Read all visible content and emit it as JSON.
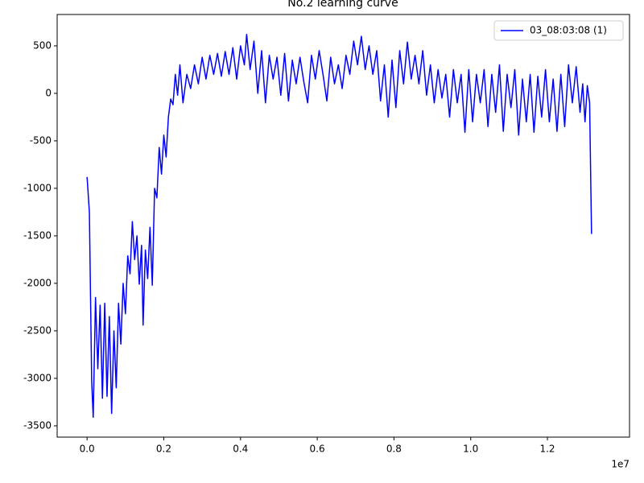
{
  "chart_data": {
    "type": "line",
    "title": "No.2 learning curve",
    "x_offset_label": "1e7",
    "x": [
      0.0,
      0.006,
      0.012,
      0.016,
      0.022,
      0.028,
      0.034,
      0.04,
      0.046,
      0.052,
      0.058,
      0.064,
      0.07,
      0.076,
      0.082,
      0.088,
      0.094,
      0.1,
      0.106,
      0.112,
      0.118,
      0.124,
      0.13,
      0.136,
      0.142,
      0.146,
      0.152,
      0.158,
      0.164,
      0.17,
      0.176,
      0.182,
      0.188,
      0.194,
      0.2,
      0.206,
      0.212,
      0.218,
      0.224,
      0.23,
      0.236,
      0.242,
      0.25,
      0.26,
      0.27,
      0.28,
      0.29,
      0.3,
      0.31,
      0.32,
      0.33,
      0.34,
      0.35,
      0.36,
      0.37,
      0.38,
      0.39,
      0.4,
      0.41,
      0.416,
      0.425,
      0.435,
      0.445,
      0.455,
      0.465,
      0.475,
      0.485,
      0.495,
      0.505,
      0.515,
      0.525,
      0.535,
      0.545,
      0.555,
      0.565,
      0.575,
      0.585,
      0.595,
      0.605,
      0.615,
      0.625,
      0.635,
      0.645,
      0.655,
      0.665,
      0.675,
      0.685,
      0.695,
      0.705,
      0.715,
      0.725,
      0.735,
      0.745,
      0.755,
      0.765,
      0.775,
      0.785,
      0.795,
      0.805,
      0.815,
      0.825,
      0.835,
      0.845,
      0.855,
      0.865,
      0.875,
      0.885,
      0.895,
      0.905,
      0.915,
      0.925,
      0.935,
      0.945,
      0.955,
      0.965,
      0.975,
      0.985,
      0.995,
      1.005,
      1.015,
      1.025,
      1.035,
      1.045,
      1.055,
      1.065,
      1.075,
      1.085,
      1.095,
      1.105,
      1.115,
      1.125,
      1.135,
      1.145,
      1.155,
      1.165,
      1.175,
      1.185,
      1.195,
      1.205,
      1.215,
      1.225,
      1.235,
      1.245,
      1.255,
      1.265,
      1.275,
      1.285,
      1.292,
      1.298,
      1.304,
      1.31,
      1.315
    ],
    "series": [
      {
        "name": "03_08:03:08 (1)",
        "color": "#0000ff",
        "values": [
          -880,
          -1250,
          -3030,
          -3410,
          -2150,
          -2900,
          -2230,
          -3210,
          -2210,
          -3190,
          -2350,
          -3370,
          -2500,
          -3100,
          -2210,
          -2640,
          -2000,
          -2320,
          -1710,
          -1900,
          -1350,
          -1750,
          -1500,
          -2010,
          -1600,
          -2440,
          -1650,
          -1950,
          -1410,
          -2020,
          -1000,
          -1100,
          -570,
          -850,
          -440,
          -670,
          -250,
          -60,
          -120,
          200,
          -20,
          300,
          -100,
          200,
          50,
          300,
          100,
          380,
          150,
          400,
          200,
          420,
          180,
          440,
          200,
          480,
          150,
          500,
          300,
          620,
          250,
          550,
          0,
          450,
          -100,
          400,
          150,
          380,
          -20,
          420,
          -80,
          350,
          100,
          380,
          120,
          -100,
          400,
          150,
          450,
          200,
          -80,
          380,
          100,
          300,
          50,
          400,
          200,
          550,
          300,
          600,
          250,
          500,
          200,
          450,
          -80,
          300,
          -250,
          350,
          -150,
          450,
          100,
          540,
          150,
          400,
          100,
          450,
          -20,
          300,
          -100,
          250,
          -50,
          200,
          -250,
          250,
          -100,
          200,
          -410,
          250,
          -300,
          200,
          -100,
          250,
          -350,
          200,
          -200,
          300,
          -400,
          200,
          -150,
          250,
          -440,
          150,
          -300,
          200,
          -410,
          180,
          -250,
          250,
          -300,
          150,
          -400,
          200,
          -350,
          300,
          -100,
          280,
          -200,
          100,
          -300,
          80,
          -100,
          -1480
        ]
      }
    ],
    "xlim": [
      -0.078,
      1.414
    ],
    "ylim": [
      -3619,
      830
    ],
    "xticks": [
      {
        "value": 0,
        "label": "0.0"
      },
      0.2,
      0.4,
      0.6,
      0.8,
      {
        "value": 1,
        "label": "1.0"
      },
      1.2
    ],
    "yticks": [
      -3500,
      -3000,
      -2500,
      -2000,
      -1500,
      -1000,
      -500,
      0,
      500
    ],
    "legend": "upper right"
  }
}
